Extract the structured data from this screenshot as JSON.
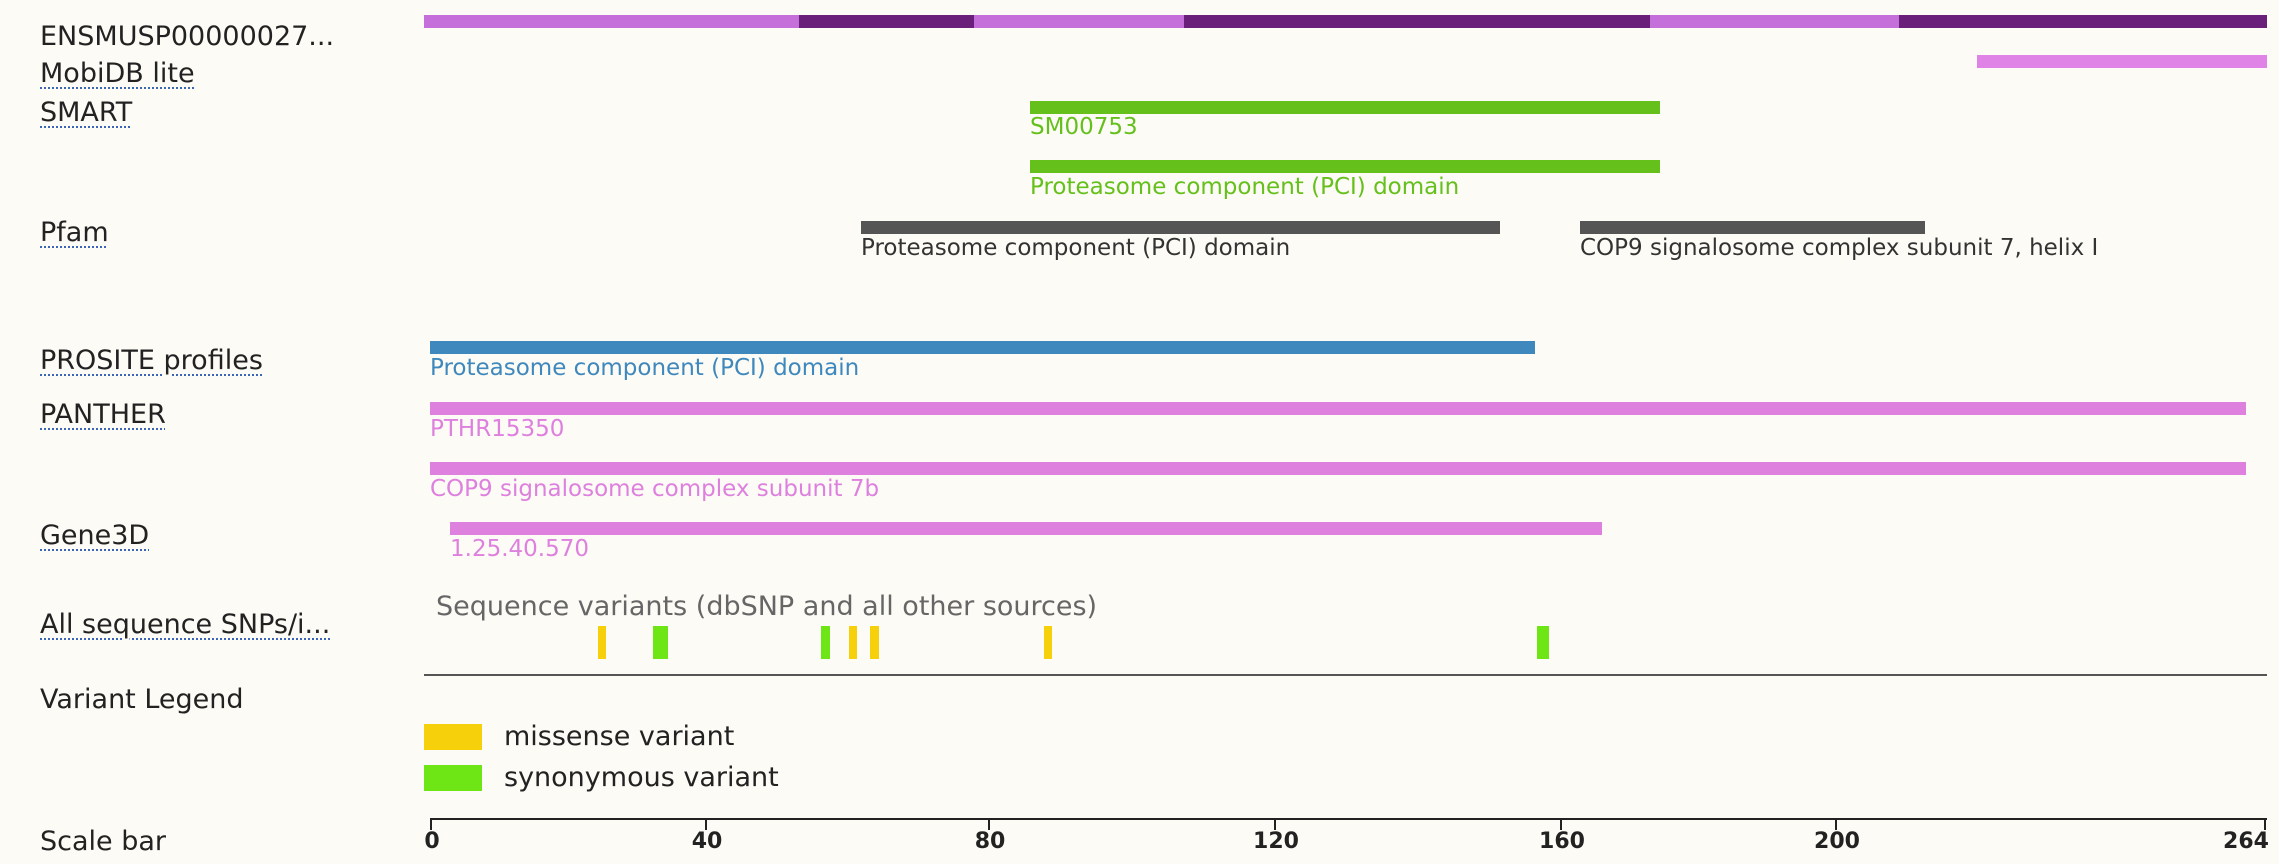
{
  "tracks": {
    "protein": {
      "label": "ENSMUSP00000027..."
    },
    "mobidb": {
      "label": "MobiDB lite"
    },
    "smart": {
      "label": "SMART",
      "feature1": "SM00753",
      "feature2": "Proteasome component (PCI) domain"
    },
    "pfam": {
      "label": "Pfam",
      "feature1": "Proteasome component (PCI) domain",
      "feature2": "COP9 signalosome complex subunit 7, helix I"
    },
    "prosite": {
      "label": "PROSITE profiles",
      "feature1": "Proteasome component (PCI) domain"
    },
    "panther": {
      "label": "PANTHER",
      "feature1": "PTHR15350",
      "feature2": "COP9 signalosome complex subunit 7b"
    },
    "gene3d": {
      "label": "Gene3D",
      "feature1": "1.25.40.570"
    },
    "snps": {
      "label": "All sequence SNPs/i...",
      "title": "Sequence variants (dbSNP and all other sources)"
    },
    "legend": {
      "label": "Variant Legend",
      "missense": "missense variant",
      "synonymous": "synonymous variant"
    },
    "scale": {
      "label": "Scale bar",
      "ticks": [
        "0",
        "40",
        "80",
        "120",
        "160",
        "200",
        "264"
      ]
    }
  },
  "colors": {
    "protein_light": "#c56fdb",
    "protein_dark": "#6a1f7a",
    "mobidb": "#e083e6",
    "smart": "#66c01c",
    "pfam": "#555555",
    "prosite": "#3f88bd",
    "panther": "#de80de",
    "gene3d": "#de80de",
    "missense": "#f5d00b",
    "synonymous": "#6ee515"
  }
}
